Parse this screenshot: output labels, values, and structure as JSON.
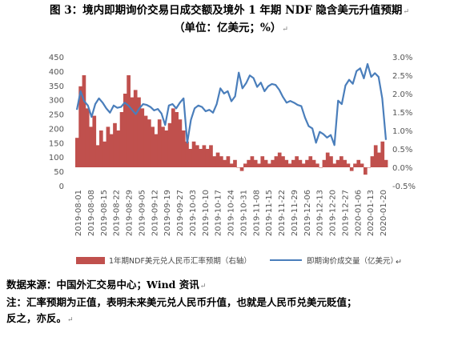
{
  "title_line1": "图 3：境内即期询价交易日成交额及境外 1 年期 NDF 隐含美元升值预期",
  "title_line2": "（单位：亿美元；%）",
  "footnote_source": "数据来源：中国外汇交易中心；Wind 资讯",
  "footnote_note_line1": "注：汇率预期为正值，表明未来美元兑人民币升值，也就是人民币兑美元贬值；",
  "footnote_note_line2": "反之，亦反。",
  "chart_data": {
    "type": "bar+line",
    "x_ticks": [
      "2019-08-01",
      "2019-08-08",
      "2019-08-15",
      "2019-08-22",
      "2019-08-29",
      "2019-09-05",
      "2019-09-12",
      "2019-09-19",
      "2019-09-27",
      "2019-10-03",
      "2019-10-10",
      "2019-10-17",
      "2019-10-24",
      "2019-10-31",
      "2019-11-08",
      "2019-11-15",
      "2019-11-22",
      "2019-11-29",
      "2019-12-06",
      "2019-12-13",
      "2019-12-20",
      "2019-12-27",
      "2020-01-06",
      "2020-01-13",
      "2020-01-20"
    ],
    "left_axis": {
      "ticks": [
        "0",
        "50",
        "100",
        "150",
        "200",
        "250",
        "300",
        "350",
        "400",
        "450"
      ],
      "min": 0,
      "max": 450
    },
    "right_axis": {
      "ticks": [
        "-0.5%",
        "0.0%",
        "0.5%",
        "1.0%",
        "1.5%",
        "2.0%",
        "2.5%",
        "3.0%"
      ],
      "min": -0.5,
      "max": 3.0
    },
    "series": [
      {
        "name": "1年期NDF美元兑人民币汇率预期（右轴）",
        "kind": "area",
        "axis": "right",
        "color": "#c0504d",
        "values": [
          0.8,
          2.2,
          2.5,
          1.6,
          1.1,
          1.4,
          0.6,
          1.0,
          0.7,
          1.1,
          0.9,
          1.2,
          1.0,
          1.5,
          2.0,
          2.5,
          1.9,
          2.1,
          1.9,
          1.6,
          1.4,
          1.3,
          1.1,
          0.9,
          1.3,
          1.1,
          1.0,
          1.2,
          1.6,
          1.5,
          1.3,
          1.0,
          0.7,
          0.5,
          0.7,
          0.6,
          0.5,
          0.6,
          0.5,
          0.6,
          0.3,
          0.4,
          0.3,
          0.2,
          0.3,
          0.1,
          0.2,
          0.0,
          -0.1,
          0.1,
          0.2,
          0.3,
          0.2,
          0.1,
          0.3,
          0.2,
          0.1,
          0.2,
          0.3,
          0.4,
          0.3,
          0.2,
          0.1,
          0.2,
          0.3,
          0.2,
          0.1,
          0.2,
          0.3,
          0.2,
          0.1,
          0.0,
          0.2,
          0.4,
          0.3,
          0.1,
          0.2,
          0.3,
          0.2,
          0.1,
          -0.1,
          0.1,
          0.2,
          0.1,
          -0.2,
          0.0,
          0.3,
          0.6,
          0.4,
          0.7,
          0.2
        ]
      },
      {
        "name": "即期询价成交量（亿美元）",
        "kind": "line",
        "axis": "left",
        "color": "#4a7ebb",
        "values": [
          265,
          330,
          295,
          280,
          240,
          285,
          305,
          290,
          270,
          255,
          280,
          272,
          275,
          290,
          280,
          265,
          250,
          270,
          285,
          282,
          275,
          263,
          268,
          252,
          212,
          280,
          285,
          270,
          290,
          305,
          150,
          230,
          270,
          280,
          275,
          260,
          265,
          255,
          285,
          340,
          322,
          330,
          295,
          312,
          395,
          340,
          358,
          385,
          376,
          345,
          360,
          330,
          347,
          355,
          352,
          335,
          310,
          290,
          296,
          290,
          282,
          278,
          238,
          208,
          200,
          150,
          188,
          180,
          168,
          177,
          142,
          297,
          285,
          350,
          370,
          356,
          400,
          410,
          375,
          425,
          380,
          393,
          380,
          305,
          160
        ]
      }
    ]
  }
}
